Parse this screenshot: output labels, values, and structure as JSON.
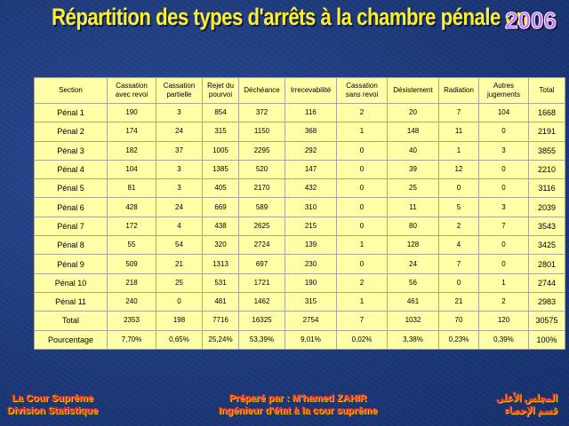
{
  "title": "Répartition des types d'arrêts à la chambre pénale en",
  "year": "2006",
  "table": {
    "headers": [
      [
        "Section"
      ],
      [
        "Cassation",
        "avec revoi"
      ],
      [
        "Cassation",
        "partielle"
      ],
      [
        "Rejet du",
        "pourvoi"
      ],
      [
        "Déchéance"
      ],
      [
        "Irrecevabilité"
      ],
      [
        "Cassation",
        "sans revoi"
      ],
      [
        "Désistement"
      ],
      [
        "Radiation"
      ],
      [
        "Autres",
        "jugements"
      ],
      [
        "Total"
      ]
    ],
    "rows": [
      [
        "Pénal 1",
        "190",
        "3",
        "854",
        "372",
        "116",
        "2",
        "20",
        "7",
        "104",
        "1668"
      ],
      [
        "Pénal 2",
        "174",
        "24",
        "315",
        "1150",
        "368",
        "1",
        "148",
        "11",
        "0",
        "2191"
      ],
      [
        "Pénal 3",
        "182",
        "37",
        "1005",
        "2295",
        "292",
        "0",
        "40",
        "1",
        "3",
        "3855"
      ],
      [
        "Pénal 4",
        "104",
        "3",
        "1385",
        "520",
        "147",
        "0",
        "39",
        "12",
        "0",
        "2210"
      ],
      [
        "Pénal 5",
        "81",
        "3",
        "405",
        "2170",
        "432",
        "0",
        "25",
        "0",
        "0",
        "3116"
      ],
      [
        "Pénal 6",
        "428",
        "24",
        "669",
        "589",
        "310",
        "0",
        "11",
        "5",
        "3",
        "2039"
      ],
      [
        "Pénal 7",
        "172",
        "4",
        "438",
        "2625",
        "215",
        "0",
        "80",
        "2",
        "7",
        "3543"
      ],
      [
        "Pénal 8",
        "55",
        "54",
        "320",
        "2724",
        "139",
        "1",
        "128",
        "4",
        "0",
        "3425"
      ],
      [
        "Pénal 9",
        "509",
        "21",
        "1313",
        "697",
        "230",
        "0",
        "24",
        "7",
        "0",
        "2801"
      ],
      [
        "Pénal 10",
        "218",
        "25",
        "531",
        "1721",
        "190",
        "2",
        "56",
        "0",
        "1",
        "2744"
      ],
      [
        "Pénal 11",
        "240",
        "0",
        "481",
        "1462",
        "315",
        "1",
        "461",
        "21",
        "2",
        "2983"
      ]
    ],
    "footer_rows": [
      [
        "Total",
        "2353",
        "198",
        "7716",
        "16325",
        "2754",
        "7",
        "1032",
        "70",
        "120",
        "30575"
      ],
      [
        "Pourcentage",
        "7,70%",
        "0,65%",
        "25,24%",
        "53,39%",
        "9,01%",
        "0,02%",
        "3,38%",
        "0,23%",
        "0,39%",
        "100%"
      ]
    ]
  },
  "footer": {
    "left_line1": "La Cour Suprême",
    "left_line2": "Division Statistique",
    "center_line1": "Préparé par : M'hamed ZAHIR",
    "center_line2": "Ingénieur d'état à la cour suprême",
    "right_line1": "المجلس الأعلى",
    "right_line2": "قسم الإحصاء"
  }
}
